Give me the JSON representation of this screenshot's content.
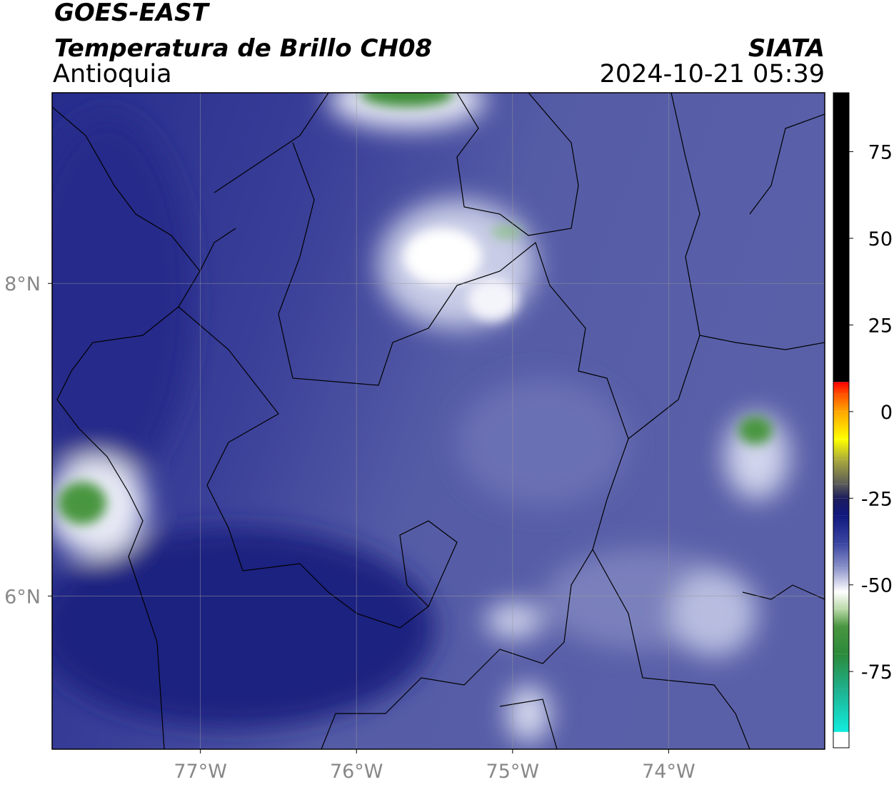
{
  "header": {
    "title": "GOES-EAST",
    "subtitle": "Temperatura de Brillo CH08",
    "region": "Antioquia",
    "source": "SIATA",
    "timestamp": "2024-10-21 05:39"
  },
  "map": {
    "xlim": [
      -77.95,
      -73.0
    ],
    "ylim": [
      5.02,
      9.22
    ],
    "grid": true,
    "xticks": [
      {
        "value": -77,
        "label": "77°W"
      },
      {
        "value": -76,
        "label": "76°W"
      },
      {
        "value": -75,
        "label": "75°W"
      },
      {
        "value": -74,
        "label": "74°W"
      }
    ],
    "yticks": [
      {
        "value": 8,
        "label": "8°N"
      },
      {
        "value": 6,
        "label": "6°N"
      }
    ]
  },
  "colorbar": {
    "lim": [
      -97,
      92
    ],
    "ticks": [
      75,
      50,
      25,
      0,
      -25,
      -50,
      -75
    ],
    "colormap": [
      {
        "value": -97,
        "color": "#ffffff"
      },
      {
        "value": -92.5,
        "color": "#ffffff"
      },
      {
        "value": -92.4,
        "color": "#12ecde"
      },
      {
        "value": -80,
        "color": "#1fb08c"
      },
      {
        "value": -70,
        "color": "#2c8a3a"
      },
      {
        "value": -62,
        "color": "#4a9640"
      },
      {
        "value": -57,
        "color": "#b9d9a8"
      },
      {
        "value": -52,
        "color": "#ffffff"
      },
      {
        "value": -45,
        "color": "#8b92c9"
      },
      {
        "value": -38,
        "color": "#3b46a2"
      },
      {
        "value": -30,
        "color": "#10187e"
      },
      {
        "value": -25,
        "color": "#1c1c5c"
      },
      {
        "value": -21,
        "color": "#5a5a5a"
      },
      {
        "value": -14,
        "color": "#a9a93c"
      },
      {
        "value": -8,
        "color": "#ffff00"
      },
      {
        "value": 0,
        "color": "#ffa600"
      },
      {
        "value": 5,
        "color": "#ff5200"
      },
      {
        "value": 8.5,
        "color": "#ff0000"
      },
      {
        "value": 8.6,
        "color": "#000000"
      },
      {
        "value": 92,
        "color": "#000000"
      }
    ]
  }
}
